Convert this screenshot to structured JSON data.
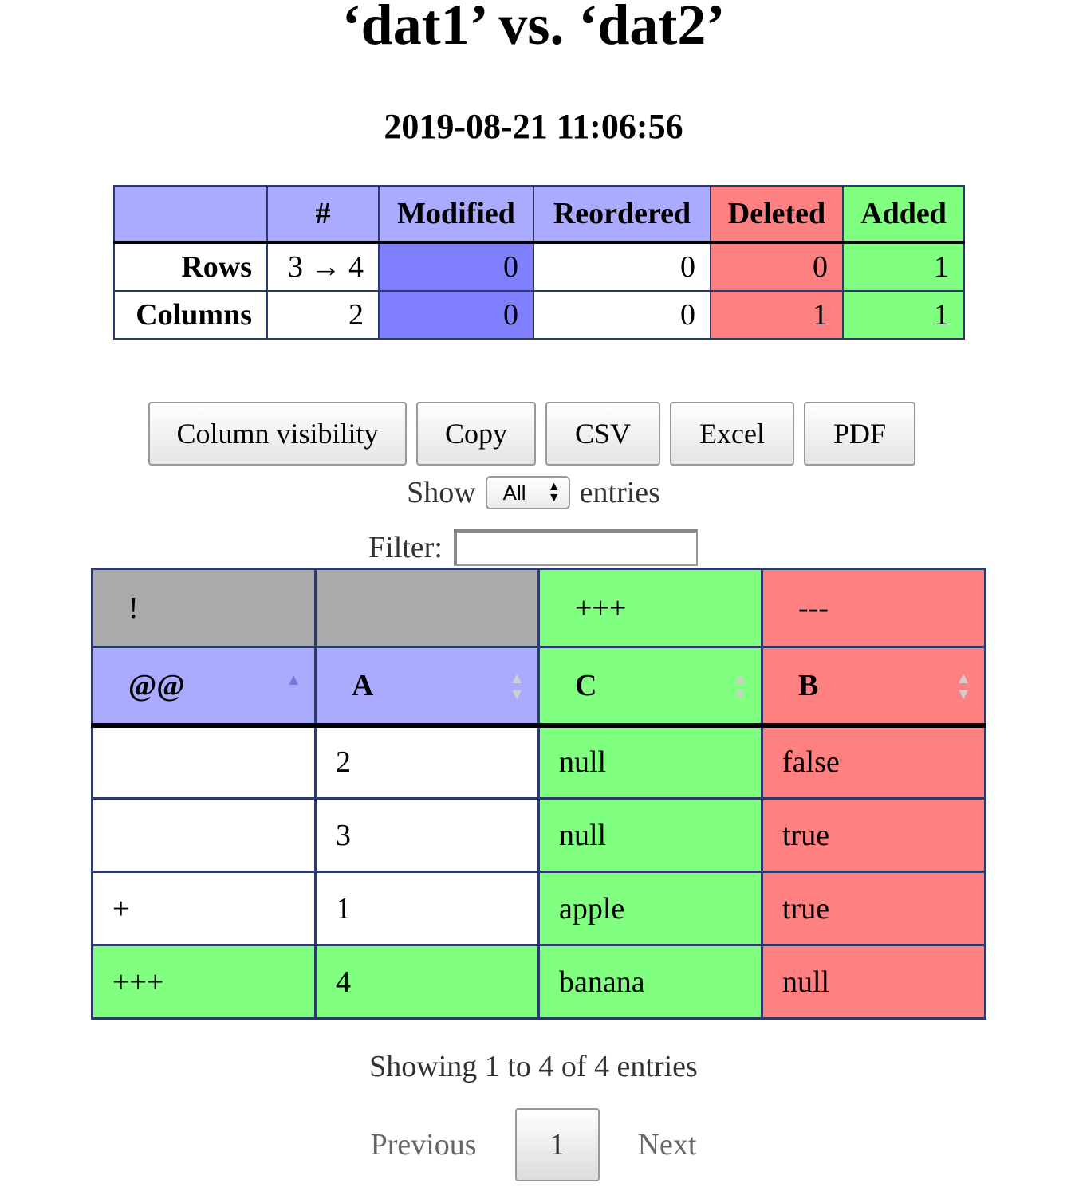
{
  "title": "‘dat1’ vs. ‘dat2’",
  "timestamp": "2019-08-21 11:06:56",
  "summary": {
    "headers": [
      "",
      "#",
      "Modified",
      "Reordered",
      "Deleted",
      "Added"
    ],
    "rows": [
      {
        "label": "Rows",
        "count": "3 → 4",
        "modified": "0",
        "reordered": "0",
        "deleted": "0",
        "added": "1"
      },
      {
        "label": "Columns",
        "count": "2",
        "modified": "0",
        "reordered": "0",
        "deleted": "1",
        "added": "1"
      }
    ]
  },
  "toolbar": {
    "column_visibility": "Column visibility",
    "copy": "Copy",
    "csv": "CSV",
    "excel": "Excel",
    "pdf": "PDF"
  },
  "length": {
    "show_label": "Show",
    "selected": "All",
    "entries_label": "entries"
  },
  "filter": {
    "label": "Filter:",
    "value": ""
  },
  "table": {
    "meta_row": [
      "!",
      "",
      "+++",
      "---"
    ],
    "columns": [
      "@@",
      "A",
      "C",
      "B"
    ],
    "rows": [
      [
        "",
        "2",
        "null",
        "false"
      ],
      [
        "",
        "3",
        "null",
        "true"
      ],
      [
        "+",
        "1",
        "apple",
        "true"
      ],
      [
        "+++",
        "4",
        "banana",
        "null"
      ]
    ]
  },
  "info": "Showing 1 to 4 of 4 entries",
  "pagination": {
    "previous": "Previous",
    "current": "1",
    "next": "Next"
  },
  "colors": {
    "header_blue": "#aaaaff",
    "modified_blue": "#8080ff",
    "deleted_red": "#ff8080",
    "added_green": "#80ff80",
    "meta_gray": "#aaaaaa"
  }
}
